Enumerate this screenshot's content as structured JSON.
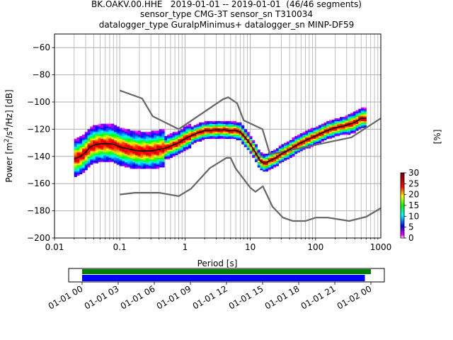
{
  "header": {
    "line1": "BK.OAKV.00.HHE   2019-01-01 -- 2019-01-01  (46/46 segments)",
    "line2": "sensor_type CMG-3T sensor_sn T310034",
    "line3": "datalogger_type GuralpMinimus+ datalogger_sn MINP-DF59"
  },
  "colors": {
    "model_curve": "#666666",
    "mean_curve": "#000000",
    "grid": "#b0b0b0",
    "timeline_bar_top": "#008000",
    "timeline_bar_bottom": "#0000ff"
  },
  "chart_data": [
    {
      "type": "heatmap",
      "title": "",
      "xlabel": "Period [s]",
      "ylabel": "Power [m²/s⁴/Hz] [dB]",
      "xscale": "log",
      "xlim": [
        0.01,
        1000
      ],
      "ylim": [
        -200,
        -50
      ],
      "xticks": [
        0.01,
        0.1,
        1,
        10,
        100,
        1000
      ],
      "xticklabels": [
        "0.01",
        "0.1",
        "1",
        "10",
        "100",
        "1000"
      ],
      "yticks": [
        -200,
        -180,
        -160,
        -140,
        -120,
        -100,
        -80,
        -60
      ],
      "yticklabels": [
        "−200",
        "−180",
        "−160",
        "−140",
        "−120",
        "−100",
        "−80",
        "−60"
      ],
      "grid": true,
      "colorbar": {
        "label": "[%]",
        "range": [
          0,
          30
        ],
        "ticks": [
          0,
          5,
          10,
          15,
          20,
          25,
          30
        ]
      },
      "series": [
        {
          "role": "high-noise-model",
          "x": [
            0.1,
            0.22,
            0.32,
            0.8,
            3.8,
            4.6,
            6.3,
            7.9,
            15.4,
            20,
            354.8,
            1000
          ],
          "y": [
            -91.5,
            -97.4,
            -110.5,
            -120,
            -98,
            -96.5,
            -101,
            -113.5,
            -120,
            -138.5,
            -126,
            -112
          ]
        },
        {
          "role": "low-noise-model",
          "x": [
            0.1,
            0.17,
            0.4,
            0.8,
            1.24,
            2.4,
            4.3,
            5,
            6,
            10,
            12,
            15.6,
            21.9,
            31.6,
            45,
            70,
            101,
            154,
            328,
            600,
            1000
          ],
          "y": [
            -168,
            -166.7,
            -166.7,
            -169.2,
            -163.7,
            -148.6,
            -141.1,
            -141.1,
            -149,
            -163,
            -166,
            -162,
            -177,
            -185,
            -187.5,
            -187.5,
            -185,
            -185,
            -187.5,
            -184.4,
            -178
          ]
        },
        {
          "role": "mean-psd",
          "x": [
            0.02,
            0.025,
            0.03,
            0.035,
            0.045,
            0.06,
            0.08,
            0.1,
            0.15,
            0.2,
            0.3,
            0.5,
            0.8,
            1,
            1.5,
            2,
            3,
            4,
            5,
            6,
            7,
            8,
            10,
            12,
            14,
            16,
            18,
            20,
            25,
            30,
            40,
            50,
            60,
            80,
            100,
            150,
            200,
            300,
            400,
            500,
            600
          ],
          "y": [
            -142,
            -140,
            -137,
            -133,
            -131,
            -130.5,
            -131,
            -133,
            -135,
            -136,
            -136,
            -134,
            -130,
            -127,
            -123,
            -121,
            -120.5,
            -120.5,
            -121,
            -121,
            -122,
            -125,
            -131,
            -137,
            -143,
            -145,
            -144.5,
            -143,
            -141,
            -138,
            -135,
            -132,
            -130,
            -127,
            -125,
            -121,
            -119,
            -117,
            -115,
            -112,
            -112
          ]
        }
      ]
    },
    {
      "type": "timeline",
      "xlabel": "",
      "xlim": [
        "2019-01-01 00:00",
        "2019-01-02 00:00"
      ],
      "tick_labels": [
        "01-01 00",
        "01-01 03",
        "01-01 06",
        "01-01 09",
        "01-01 12",
        "01-01 15",
        "01-01 18",
        "01-01 21",
        "01-02 00"
      ],
      "tick_hours": [
        0,
        3,
        6,
        9,
        12,
        15,
        18,
        21,
        24
      ],
      "bars": [
        {
          "role": "data-coverage",
          "start_hour": 0,
          "end_hour": 24
        },
        {
          "role": "psd-segments",
          "start_hour": 0,
          "end_hour": 23.5
        }
      ]
    }
  ]
}
